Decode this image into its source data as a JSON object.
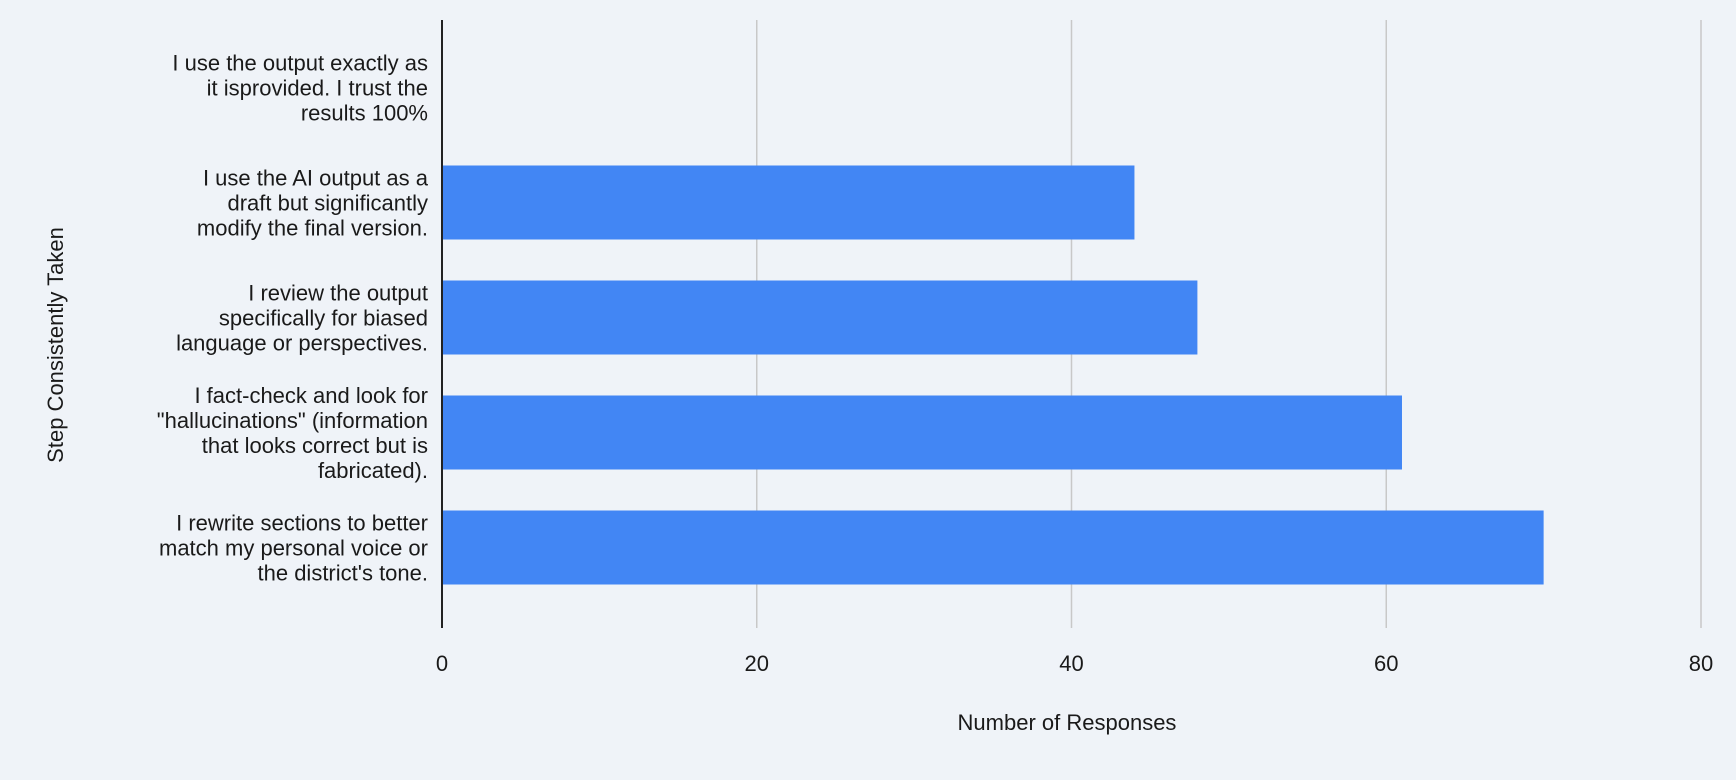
{
  "chart_data": {
    "type": "bar",
    "orientation": "horizontal",
    "title": "",
    "xlabel": "Number of Responses",
    "ylabel": "Step Consistently Taken",
    "xlim": [
      0,
      80
    ],
    "xticks": [
      0,
      20,
      40,
      60,
      80
    ],
    "grid": true,
    "legend": "none",
    "categories": [
      [
        "I use the output exactly as",
        "it isprovided. I trust the",
        "results 100%"
      ],
      [
        "I use the AI output as a",
        "draft but significantly",
        "modify the final version."
      ],
      [
        "I review the output",
        "specifically for biased",
        "language or perspectives."
      ],
      [
        "I fact-check and look for",
        "\"hallucinations\" (information",
        "that looks correct but is",
        "fabricated)."
      ],
      [
        "I rewrite sections to better",
        "match my personal voice or",
        "the district's tone."
      ]
    ],
    "values": [
      0,
      44,
      48,
      61,
      70
    ],
    "colors": {
      "bar": "#4286f4",
      "grid": "#c8c8c8",
      "axis": "#222222",
      "background": "#eff3f8"
    }
  }
}
